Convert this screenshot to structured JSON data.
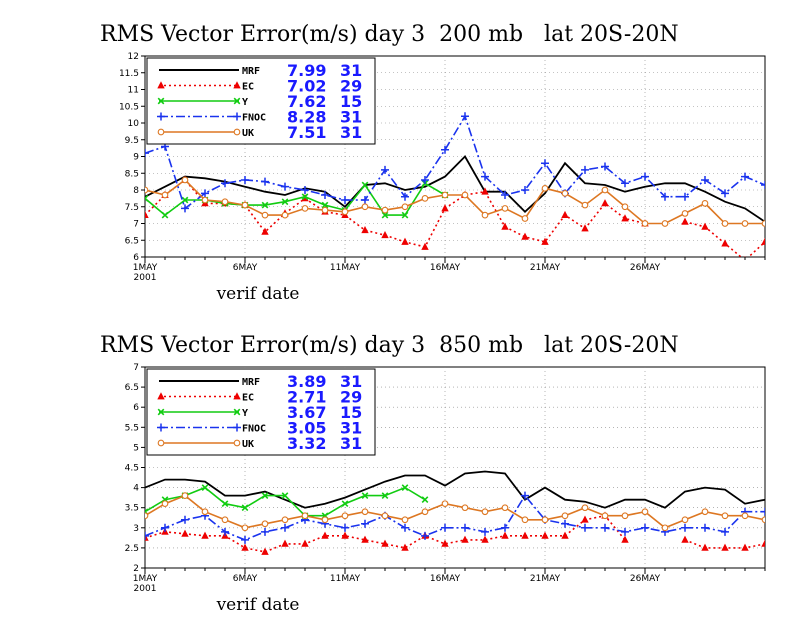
{
  "chart_data": [
    {
      "type": "line",
      "title": "RMS Vector Error(m/s) day 3  200 mb   lat 20S-20N",
      "xlabel": "verif date",
      "ylabel": "",
      "ylim": [
        6,
        12
      ],
      "yticks": [
        "6",
        "6.5",
        "7",
        "7.5",
        "8",
        "8.5",
        "9",
        "9.5",
        "10",
        "10.5",
        "11",
        "11.5",
        "12"
      ],
      "xlim": [
        1,
        32
      ],
      "xticks": [
        {
          "x": 1,
          "label": "1MAY",
          "sub": "2001"
        },
        {
          "x": 6,
          "label": "6MAY",
          "sub": ""
        },
        {
          "x": 11,
          "label": "11MAY",
          "sub": ""
        },
        {
          "x": 16,
          "label": "16MAY",
          "sub": ""
        },
        {
          "x": 21,
          "label": "21MAY",
          "sub": ""
        },
        {
          "x": 26,
          "label": "26MAY",
          "sub": ""
        }
      ],
      "grid": true,
      "legend_position": "top-left",
      "series": [
        {
          "name": "MRF",
          "mean": "7.99",
          "count": "31",
          "color": "#000000",
          "dash": "",
          "marker": "none",
          "values": [
            7.8,
            8.1,
            8.4,
            8.35,
            8.25,
            8.1,
            7.95,
            7.85,
            8.05,
            7.95,
            7.5,
            8.15,
            8.2,
            8.0,
            8.1,
            8.4,
            9.0,
            7.95,
            7.95,
            7.35,
            7.9,
            8.8,
            8.2,
            8.15,
            7.95,
            8.1,
            8.2,
            8.2,
            7.95,
            7.65,
            7.45,
            7.05
          ]
        },
        {
          "name": "EC",
          "mean": "7.02",
          "count": "29",
          "color": "#ee0000",
          "dash": "2,3",
          "marker": "triangle",
          "values": [
            7.25,
            7.85,
            8.3,
            7.6,
            7.6,
            7.55,
            6.75,
            7.3,
            7.75,
            7.35,
            7.25,
            6.8,
            6.65,
            6.45,
            6.3,
            7.45,
            7.85,
            7.95,
            6.9,
            6.6,
            6.45,
            7.25,
            6.85,
            7.6,
            7.15,
            7.0,
            null,
            7.05,
            6.9,
            6.4,
            5.9,
            6.45
          ]
        },
        {
          "name": "Y",
          "mean": "7.62",
          "count": "15",
          "color": "#11cc11",
          "dash": "",
          "marker": "x",
          "values": [
            7.75,
            7.25,
            7.7,
            7.7,
            7.6,
            7.55,
            7.55,
            7.65,
            7.8,
            7.55,
            7.4,
            8.15,
            7.25,
            7.25,
            8.2,
            7.85,
            null,
            null,
            null,
            null,
            null,
            null,
            null,
            null,
            null,
            null,
            null,
            null,
            null,
            null,
            null,
            null
          ]
        },
        {
          "name": "FNOC",
          "mean": "8.28",
          "count": "31",
          "color": "#1a33ee",
          "dash": "9,3,2,3",
          "marker": "plus",
          "values": [
            9.1,
            9.3,
            7.45,
            7.9,
            8.2,
            8.3,
            8.25,
            8.1,
            8.0,
            7.85,
            7.7,
            7.7,
            8.6,
            7.8,
            8.3,
            9.2,
            10.2,
            8.4,
            7.85,
            8.0,
            8.8,
            7.9,
            8.6,
            8.7,
            8.2,
            8.4,
            7.8,
            7.8,
            8.3,
            7.9,
            8.4,
            8.15
          ]
        },
        {
          "name": "UK",
          "mean": "7.51",
          "count": "31",
          "color": "#dd7722",
          "dash": "",
          "marker": "circle",
          "values": [
            8.0,
            7.85,
            8.3,
            7.7,
            7.65,
            7.55,
            7.25,
            7.25,
            7.45,
            7.4,
            7.35,
            7.5,
            7.4,
            7.5,
            7.75,
            7.85,
            7.85,
            7.25,
            7.45,
            7.15,
            8.05,
            7.9,
            7.55,
            8.0,
            7.5,
            7.0,
            7.0,
            7.3,
            7.6,
            7.0,
            7.0,
            7.0
          ]
        }
      ]
    },
    {
      "type": "line",
      "title": "RMS Vector Error(m/s) day 3  850 mb   lat 20S-20N",
      "xlabel": "verif date",
      "ylabel": "",
      "ylim": [
        2,
        7
      ],
      "yticks": [
        "2",
        "2.5",
        "3",
        "3.5",
        "4",
        "4.5",
        "5",
        "5.5",
        "6",
        "6.5",
        "7"
      ],
      "xlim": [
        1,
        32
      ],
      "xticks": [
        {
          "x": 1,
          "label": "1MAY",
          "sub": "2001"
        },
        {
          "x": 6,
          "label": "6MAY",
          "sub": ""
        },
        {
          "x": 11,
          "label": "11MAY",
          "sub": ""
        },
        {
          "x": 16,
          "label": "16MAY",
          "sub": ""
        },
        {
          "x": 21,
          "label": "21MAY",
          "sub": ""
        },
        {
          "x": 26,
          "label": "26MAY",
          "sub": ""
        }
      ],
      "grid": true,
      "legend_position": "top-left",
      "series": [
        {
          "name": "MRF",
          "mean": "3.89",
          "count": "31",
          "color": "#000000",
          "dash": "",
          "marker": "none",
          "values": [
            4.0,
            4.2,
            4.2,
            4.15,
            3.8,
            3.8,
            3.9,
            3.7,
            3.5,
            3.6,
            3.75,
            3.95,
            4.15,
            4.3,
            4.3,
            4.05,
            4.35,
            4.4,
            4.35,
            3.7,
            4.0,
            3.7,
            3.65,
            3.5,
            3.7,
            3.7,
            3.5,
            3.9,
            4.0,
            3.95,
            3.6,
            3.7
          ]
        },
        {
          "name": "EC",
          "mean": "2.71",
          "count": "29",
          "color": "#ee0000",
          "dash": "2,3",
          "marker": "triangle",
          "values": [
            2.75,
            2.9,
            2.85,
            2.8,
            2.8,
            2.5,
            2.4,
            2.6,
            2.6,
            2.8,
            2.8,
            2.7,
            2.6,
            2.5,
            2.8,
            2.6,
            2.7,
            2.7,
            2.8,
            2.8,
            2.8,
            2.8,
            3.2,
            3.3,
            2.7,
            null,
            null,
            2.7,
            2.5,
            2.5,
            2.5,
            2.6
          ]
        },
        {
          "name": "Y",
          "mean": "3.67",
          "count": "15",
          "color": "#11cc11",
          "dash": "",
          "marker": "x",
          "values": [
            3.4,
            3.7,
            3.8,
            4.0,
            3.6,
            3.5,
            3.8,
            3.8,
            3.3,
            3.3,
            3.6,
            3.8,
            3.8,
            4.0,
            3.7,
            null,
            null,
            null,
            null,
            null,
            null,
            null,
            null,
            null,
            null,
            null,
            null,
            null,
            null,
            null,
            null,
            null
          ]
        },
        {
          "name": "FNOC",
          "mean": "3.05",
          "count": "31",
          "color": "#1a33ee",
          "dash": "9,3,2,3",
          "marker": "plus",
          "values": [
            2.8,
            3.0,
            3.2,
            3.3,
            2.9,
            2.7,
            2.9,
            3.0,
            3.2,
            3.1,
            3.0,
            3.1,
            3.3,
            3.0,
            2.8,
            3.0,
            3.0,
            2.9,
            3.0,
            3.8,
            3.2,
            3.1,
            3.0,
            3.0,
            2.9,
            3.0,
            2.9,
            3.0,
            3.0,
            2.9,
            3.4,
            3.4
          ]
        },
        {
          "name": "UK",
          "mean": "3.32",
          "count": "31",
          "color": "#dd7722",
          "dash": "",
          "marker": "circle",
          "values": [
            3.3,
            3.6,
            3.8,
            3.4,
            3.2,
            3.0,
            3.1,
            3.2,
            3.3,
            3.2,
            3.3,
            3.4,
            3.3,
            3.2,
            3.4,
            3.6,
            3.5,
            3.4,
            3.5,
            3.2,
            3.2,
            3.3,
            3.5,
            3.3,
            3.3,
            3.4,
            3.0,
            3.2,
            3.4,
            3.3,
            3.3,
            3.2
          ]
        }
      ]
    }
  ]
}
